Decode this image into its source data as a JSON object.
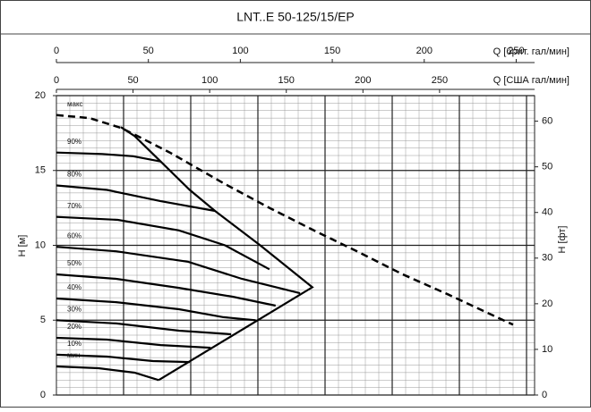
{
  "chart_data": {
    "type": "line",
    "title": "LNT..E 50-125/15/EP",
    "x_label": "Q [США гал/мин]",
    "x2_label": "Q [брит. гал/мин]",
    "y_label": "H [м]",
    "y2_label": "H [фт]",
    "xlim": [
      0,
      312
    ],
    "xticks": [
      0,
      50,
      100,
      150,
      200,
      250
    ],
    "x2lim": [
      0,
      260
    ],
    "x2ticks": [
      0,
      50,
      100,
      150,
      200,
      250
    ],
    "ylim": [
      0,
      20
    ],
    "yticks": [
      0,
      5,
      10,
      15,
      20
    ],
    "y2lim": [
      0,
      65.6
    ],
    "y2ticks": [
      0,
      10,
      20,
      30,
      40,
      50,
      60
    ],
    "grid": true,
    "series": [
      {
        "name": "макс",
        "color": "#000",
        "dashed": true,
        "x": [
          0,
          21.6,
          42,
          51,
          74,
          109,
          139,
          168,
          197,
          226,
          256,
          279,
          298
        ],
        "y": [
          18.7,
          18.5,
          17.85,
          17.4,
          16.2,
          14.15,
          12.5,
          11.0,
          9.55,
          8.06,
          6.7,
          5.6,
          4.7
        ]
      },
      {
        "name": "90%",
        "color": "#000",
        "x": [
          0,
          30,
          50,
          68
        ],
        "y": [
          16.2,
          16.1,
          15.95,
          15.6
        ]
      },
      {
        "name": "80%",
        "color": "#000",
        "x": [
          0,
          33,
          68,
          103.5
        ],
        "y": [
          14.0,
          13.7,
          12.95,
          12.3
        ]
      },
      {
        "name": "70%",
        "color": "#000",
        "x": [
          0,
          40,
          80,
          110,
          139
        ],
        "y": [
          11.9,
          11.7,
          11.0,
          10.0,
          8.4
        ]
      },
      {
        "name": "60%",
        "color": "#000",
        "x": [
          0,
          39,
          86,
          121,
          159
        ],
        "y": [
          9.9,
          9.6,
          8.9,
          7.76,
          6.8
        ]
      },
      {
        "name": "50%",
        "color": "#000",
        "x": [
          0,
          39,
          80,
          115,
          143
        ],
        "y": [
          8.06,
          7.76,
          7.16,
          6.57,
          5.97
        ]
      },
      {
        "name": "40%",
        "color": "#000",
        "x": [
          0,
          39,
          80,
          109,
          130
        ],
        "y": [
          6.45,
          6.2,
          5.73,
          5.2,
          5.0
        ]
      },
      {
        "name": "30%",
        "color": "#000",
        "x": [
          0,
          39,
          80,
          114
        ],
        "y": [
          5.0,
          4.78,
          4.3,
          4.06
        ]
      },
      {
        "name": "20%",
        "color": "#000",
        "x": [
          0,
          33,
          68,
          100.6
        ],
        "y": [
          3.82,
          3.7,
          3.34,
          3.16
        ]
      },
      {
        "name": "10%",
        "color": "#000",
        "x": [
          0,
          33,
          63,
          87
        ],
        "y": [
          2.69,
          2.57,
          2.27,
          2.2
        ]
      },
      {
        "name": "мин",
        "color": "#000",
        "x": [
          0,
          27.5,
          51,
          66.7
        ],
        "y": [
          1.91,
          1.79,
          1.49,
          1.0
        ]
      },
      {
        "color": "#000",
        "x": [
          42,
          51,
          68,
          87,
          103.5,
          133,
          167,
          66.7
        ],
        "y": [
          17.9,
          17.3,
          15.6,
          13.7,
          12.3,
          10.0,
          7.2,
          1.0
        ]
      }
    ]
  }
}
